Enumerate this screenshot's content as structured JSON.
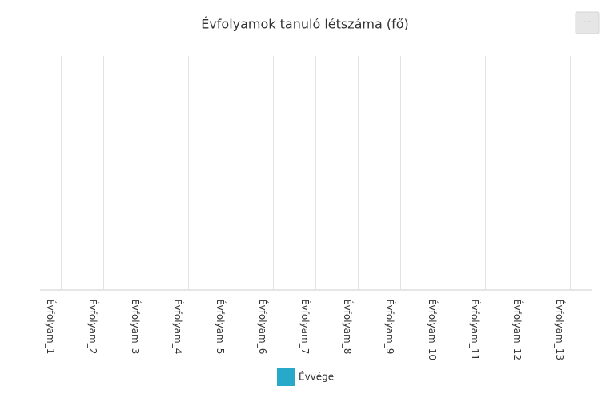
{
  "chart_data": {
    "type": "bar",
    "title": "Évfolyamok tanuló létszáma (fő)",
    "categories": [
      "Évfolyam_1",
      "Évfolyam_2",
      "Évfolyam_3",
      "Évfolyam_4",
      "Évfolyam_5",
      "Évfolyam_6",
      "Évfolyam_7",
      "Évfolyam_8",
      "Évfolyam_9",
      "Évfolyam_10",
      "Évfolyam_11",
      "Évfolyam_12",
      "Évfolyam_13"
    ],
    "series": [
      {
        "name": "Évvége",
        "color": "#29a9c9",
        "values": [
          0,
          0,
          0,
          0,
          0,
          0,
          0,
          0,
          0,
          0,
          0,
          0,
          0
        ]
      }
    ]
  }
}
